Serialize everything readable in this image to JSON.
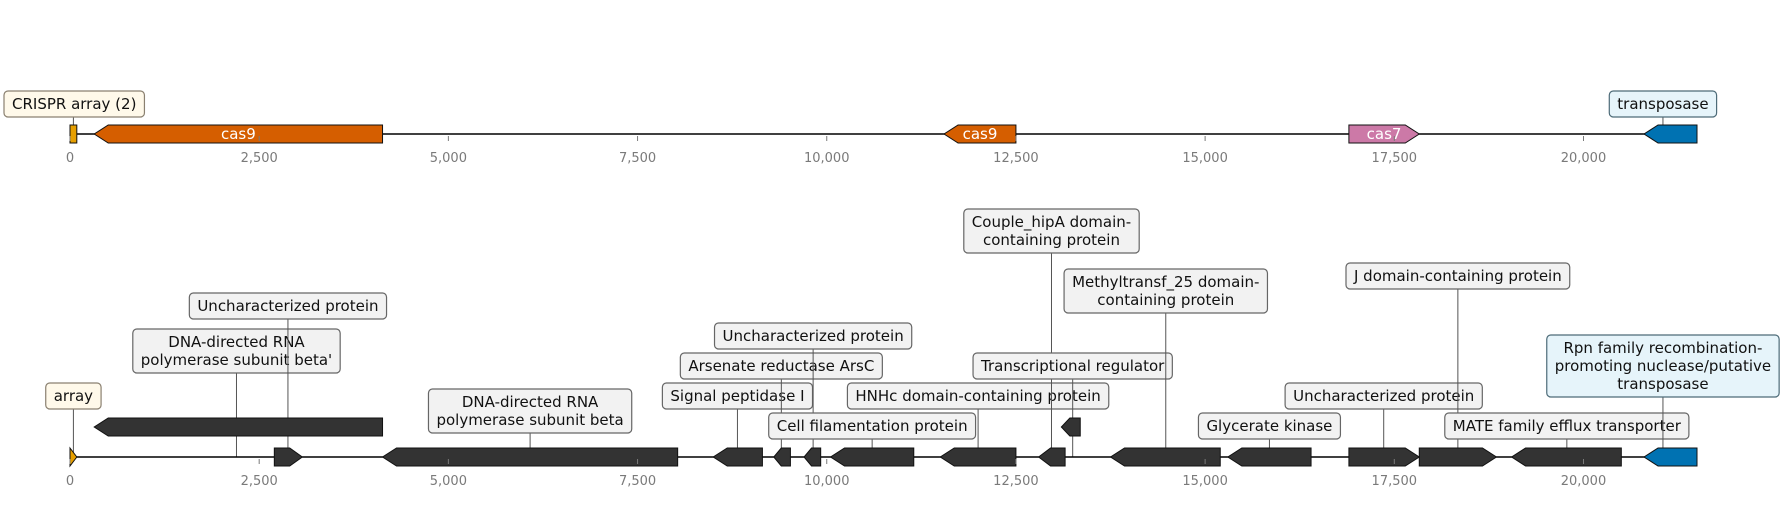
{
  "tracks": [
    {
      "genes": [
        {
          "start": 0,
          "end": 90,
          "strand": 0,
          "color": "#E69F00",
          "label": ""
        },
        {
          "start": 320,
          "end": 4130,
          "strand": -1,
          "color": "#D55E00",
          "label": "cas9"
        },
        {
          "start": 11550,
          "end": 12500,
          "strand": -1,
          "color": "#D55E00",
          "label": "cas9"
        },
        {
          "start": 16900,
          "end": 17830,
          "strand": 1,
          "color": "#CC79A7",
          "label": "cas7"
        },
        {
          "start": 20800,
          "end": 21500,
          "strand": -1,
          "color": "#0072B2",
          "label": ""
        }
      ],
      "annotations": [
        {
          "pos": 45,
          "lines": [
            "CRISPR array (2)"
          ],
          "level": 0,
          "style": "cream"
        },
        {
          "pos": 21050,
          "lines": [
            "transposase"
          ],
          "level": 0,
          "style": "blue"
        }
      ]
    },
    {
      "genes": [
        {
          "start": 0,
          "end": 90,
          "strand": 1,
          "color": "#E69F00",
          "label": ""
        },
        {
          "start": 320,
          "end": 4130,
          "strand": -1,
          "color": "#333333",
          "label": "",
          "lane": 1
        },
        {
          "start": 2700,
          "end": 3070,
          "strand": 1,
          "color": "#333333",
          "label": ""
        },
        {
          "start": 4130,
          "end": 8030,
          "strand": -1,
          "color": "#333333",
          "label": ""
        },
        {
          "start": 8500,
          "end": 9150,
          "strand": -1,
          "color": "#333333",
          "label": ""
        },
        {
          "start": 9300,
          "end": 9520,
          "strand": -1,
          "color": "#333333",
          "label": ""
        },
        {
          "start": 9700,
          "end": 9920,
          "strand": -1,
          "color": "#333333",
          "label": ""
        },
        {
          "start": 10050,
          "end": 11150,
          "strand": -1,
          "color": "#333333",
          "label": ""
        },
        {
          "start": 11500,
          "end": 12500,
          "strand": -1,
          "color": "#333333",
          "label": ""
        },
        {
          "start": 12800,
          "end": 13150,
          "strand": -1,
          "color": "#333333",
          "label": ""
        },
        {
          "start": 13100,
          "end": 13350,
          "strand": -1,
          "color": "#333333",
          "label": "",
          "lane": 1
        },
        {
          "start": 13750,
          "end": 15200,
          "strand": -1,
          "color": "#333333",
          "label": ""
        },
        {
          "start": 15300,
          "end": 16400,
          "strand": -1,
          "color": "#333333",
          "label": ""
        },
        {
          "start": 16900,
          "end": 17830,
          "strand": 1,
          "color": "#333333",
          "label": ""
        },
        {
          "start": 17830,
          "end": 18850,
          "strand": 1,
          "color": "#333333",
          "label": ""
        },
        {
          "start": 19050,
          "end": 20500,
          "strand": -1,
          "color": "#333333",
          "label": ""
        },
        {
          "start": 20800,
          "end": 21500,
          "strand": -1,
          "color": "#0072B2",
          "label": ""
        }
      ],
      "annotations": [
        {
          "pos": 45,
          "lines": [
            "array"
          ],
          "level": 1,
          "style": "cream"
        },
        {
          "pos": 2200,
          "lines": [
            "DNA-directed RNA",
            "polymerase subunit beta'"
          ],
          "level": 2.5,
          "style": "gray"
        },
        {
          "pos": 2880,
          "lines": [
            "Uncharacterized protein"
          ],
          "level": 4,
          "style": "gray"
        },
        {
          "pos": 6080,
          "lines": [
            "DNA-directed RNA",
            "polymerase subunit beta"
          ],
          "level": 0.5,
          "style": "gray"
        },
        {
          "pos": 8820,
          "lines": [
            "Signal peptidase I"
          ],
          "level": 1,
          "style": "gray"
        },
        {
          "pos": 9400,
          "lines": [
            "Arsenate reductase ArsC"
          ],
          "level": 2,
          "style": "gray"
        },
        {
          "pos": 9820,
          "lines": [
            "Uncharacterized protein"
          ],
          "level": 3,
          "style": "gray"
        },
        {
          "pos": 10600,
          "lines": [
            "Cell filamentation protein"
          ],
          "level": 0,
          "style": "gray"
        },
        {
          "pos": 12000,
          "lines": [
            "HNHc domain-containing protein"
          ],
          "level": 1,
          "style": "gray"
        },
        {
          "pos": 12970,
          "lines": [
            "Couple_hipA domain-",
            "containing protein"
          ],
          "level": 6.5,
          "style": "gray"
        },
        {
          "pos": 13250,
          "lines": [
            "Transcriptional regulator"
          ],
          "level": 2,
          "style": "gray"
        },
        {
          "pos": 14480,
          "lines": [
            "Methyltransf_25 domain-",
            "containing protein"
          ],
          "level": 4.5,
          "style": "gray"
        },
        {
          "pos": 15850,
          "lines": [
            "Glycerate kinase"
          ],
          "level": 0,
          "style": "gray"
        },
        {
          "pos": 17360,
          "lines": [
            "Uncharacterized protein"
          ],
          "level": 1,
          "style": "gray"
        },
        {
          "pos": 18340,
          "lines": [
            "J domain-containing protein"
          ],
          "level": 5,
          "style": "gray"
        },
        {
          "pos": 19780,
          "lines": [
            "MATE family efflux transporter"
          ],
          "level": 0,
          "style": "gray"
        },
        {
          "pos": 21050,
          "lines": [
            "Rpn family recombination-",
            "promoting nuclease/putative",
            "transposase"
          ],
          "level": 2,
          "style": "blue"
        }
      ]
    }
  ],
  "axis": {
    "min": 0,
    "max": 21500,
    "ticks": [
      0,
      2500,
      5000,
      7500,
      10000,
      12500,
      15000,
      17500,
      20000
    ],
    "tick_labels": [
      "0",
      "2,500",
      "5,000",
      "7,500",
      "10,000",
      "12,500",
      "15,000",
      "17,500",
      "20,000"
    ]
  },
  "colors": {
    "cream_fill": "#FFF9EA",
    "cream_stroke": "#8a8070",
    "gray_fill": "#F2F2F2",
    "gray_stroke": "#666666",
    "blue_fill": "#E6F4FA",
    "blue_stroke": "#4d6b78",
    "connector": "#555555",
    "axis_line": "#000000",
    "tick_color": "#7a7a7a"
  }
}
